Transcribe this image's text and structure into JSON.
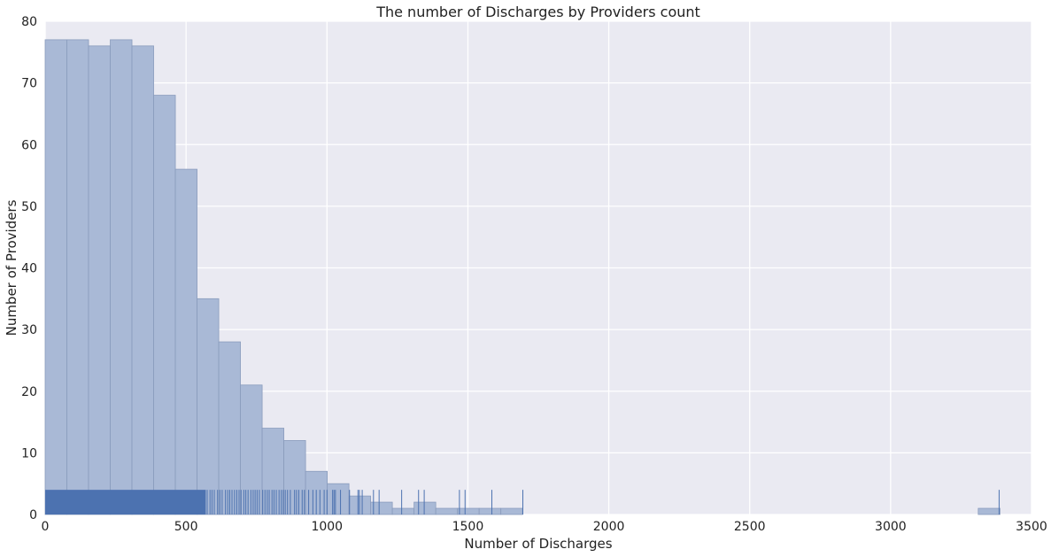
{
  "chart_data": {
    "type": "bar",
    "title": "The number of Discharges by Providers count",
    "xlabel": "Number of Discharges",
    "ylabel": "Number of Providers",
    "xlim": [
      0,
      3500
    ],
    "ylim": [
      0,
      80
    ],
    "x_ticks": [
      "0",
      "500",
      "1000",
      "1500",
      "2000",
      "2500",
      "3000",
      "3500"
    ],
    "y_ticks": [
      "0",
      "10",
      "20",
      "30",
      "40",
      "50",
      "60",
      "70",
      "80"
    ],
    "grid": true,
    "bin_width": 77,
    "bins_start": [
      0,
      77,
      154,
      231,
      308,
      385,
      462,
      539,
      616,
      693,
      770,
      847,
      924,
      1001,
      1078,
      1155,
      1232,
      1309,
      1386,
      1463,
      1540,
      1617,
      3311
    ],
    "values": [
      77,
      77,
      76,
      77,
      76,
      68,
      56,
      35,
      28,
      21,
      14,
      12,
      7,
      5,
      3,
      2,
      1,
      2,
      1,
      1,
      1,
      1,
      1
    ],
    "rug": {
      "dense_range": [
        0,
        570
      ],
      "points": [
        575,
        585,
        592,
        600,
        612,
        620,
        628,
        640,
        648,
        655,
        663,
        672,
        680,
        688,
        695,
        705,
        712,
        720,
        730,
        738,
        745,
        752,
        760,
        772,
        780,
        788,
        795,
        805,
        812,
        820,
        830,
        838,
        845,
        852,
        860,
        870,
        885,
        892,
        900,
        912,
        920,
        935,
        950,
        962,
        975,
        990,
        1000,
        1020,
        1025,
        1030,
        1048,
        1080,
        1110,
        1115,
        1125,
        1165,
        1185,
        1265,
        1325,
        1345,
        1470,
        1490,
        1585,
        1695,
        3385
      ]
    },
    "colors": {
      "bar": "#a9b9d6",
      "bar_edge": "#8a9cbd",
      "rug": "#4c72b0",
      "background": "#eaeaf2",
      "grid": "#ffffff"
    }
  }
}
